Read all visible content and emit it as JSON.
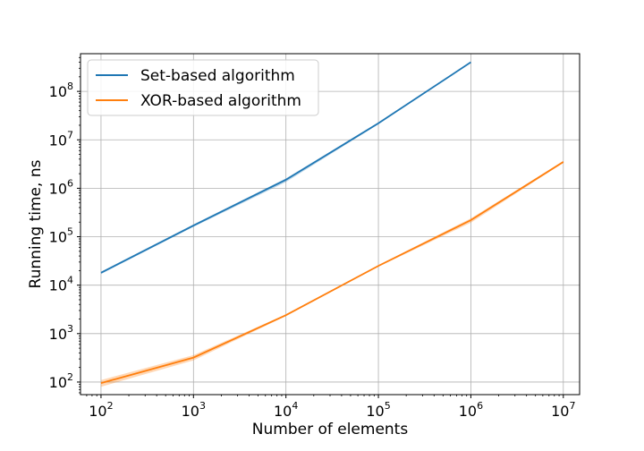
{
  "chart_data": {
    "type": "line",
    "title": "",
    "xlabel": "Number of elements",
    "ylabel": "Running time, ns",
    "xscale": "log",
    "yscale": "log",
    "xlim": [
      60,
      15000000
    ],
    "ylim": [
      55,
      600000000
    ],
    "grid": true,
    "legend": "top-left",
    "xticks": [
      {
        "value": 100,
        "exp": "2"
      },
      {
        "value": 1000,
        "exp": "3"
      },
      {
        "value": 10000,
        "exp": "4"
      },
      {
        "value": 100000,
        "exp": "5"
      },
      {
        "value": 1000000,
        "exp": "6"
      },
      {
        "value": 10000000,
        "exp": "7"
      }
    ],
    "yticks": [
      {
        "value": 100,
        "exp": "2"
      },
      {
        "value": 1000,
        "exp": "3"
      },
      {
        "value": 10000,
        "exp": "4"
      },
      {
        "value": 100000,
        "exp": "5"
      },
      {
        "value": 1000000,
        "exp": "6"
      },
      {
        "value": 10000000,
        "exp": "7"
      },
      {
        "value": 100000000,
        "exp": "8"
      }
    ],
    "series": [
      {
        "name": "Set-based algorithm",
        "color": "#1f77b4",
        "x": [
          100,
          1000,
          10000,
          100000,
          1000000
        ],
        "y": [
          18000,
          170000,
          1500000,
          22000000,
          400000000
        ],
        "y_low": [
          17000,
          160000,
          1350000,
          21000000,
          390000000
        ],
        "y_high": [
          19000,
          180000,
          1600000,
          23000000,
          410000000
        ]
      },
      {
        "name": "XOR-based algorithm",
        "color": "#ff7f0e",
        "x": [
          100,
          1000,
          10000,
          100000,
          1000000,
          10000000
        ],
        "y": [
          95,
          320,
          2400,
          25000,
          220000,
          3500000
        ],
        "y_low": [
          80,
          280,
          2300,
          24000,
          195000,
          3350000
        ],
        "y_high": [
          110,
          360,
          2500,
          26000,
          240000,
          3650000
        ]
      }
    ]
  }
}
